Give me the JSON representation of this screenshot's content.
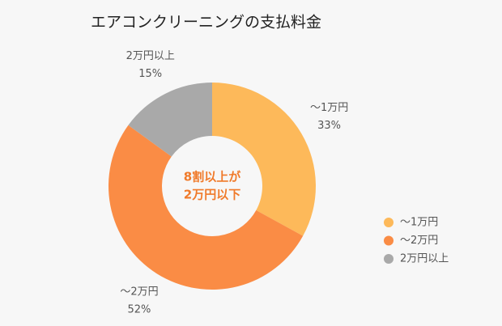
{
  "chart_data": {
    "type": "donut",
    "title": "エアコンクリーニングの支払料金",
    "categories": [
      "～1万円",
      "～2万円",
      "2万円以上"
    ],
    "values": [
      33,
      52,
      15
    ],
    "value_labels": [
      "33%",
      "52%",
      "15%"
    ],
    "colors": [
      "#fdb95a",
      "#fa8c45",
      "#a9a9a9"
    ],
    "center_label": [
      "8割以上が",
      "2万円以下"
    ],
    "legend": "right"
  }
}
